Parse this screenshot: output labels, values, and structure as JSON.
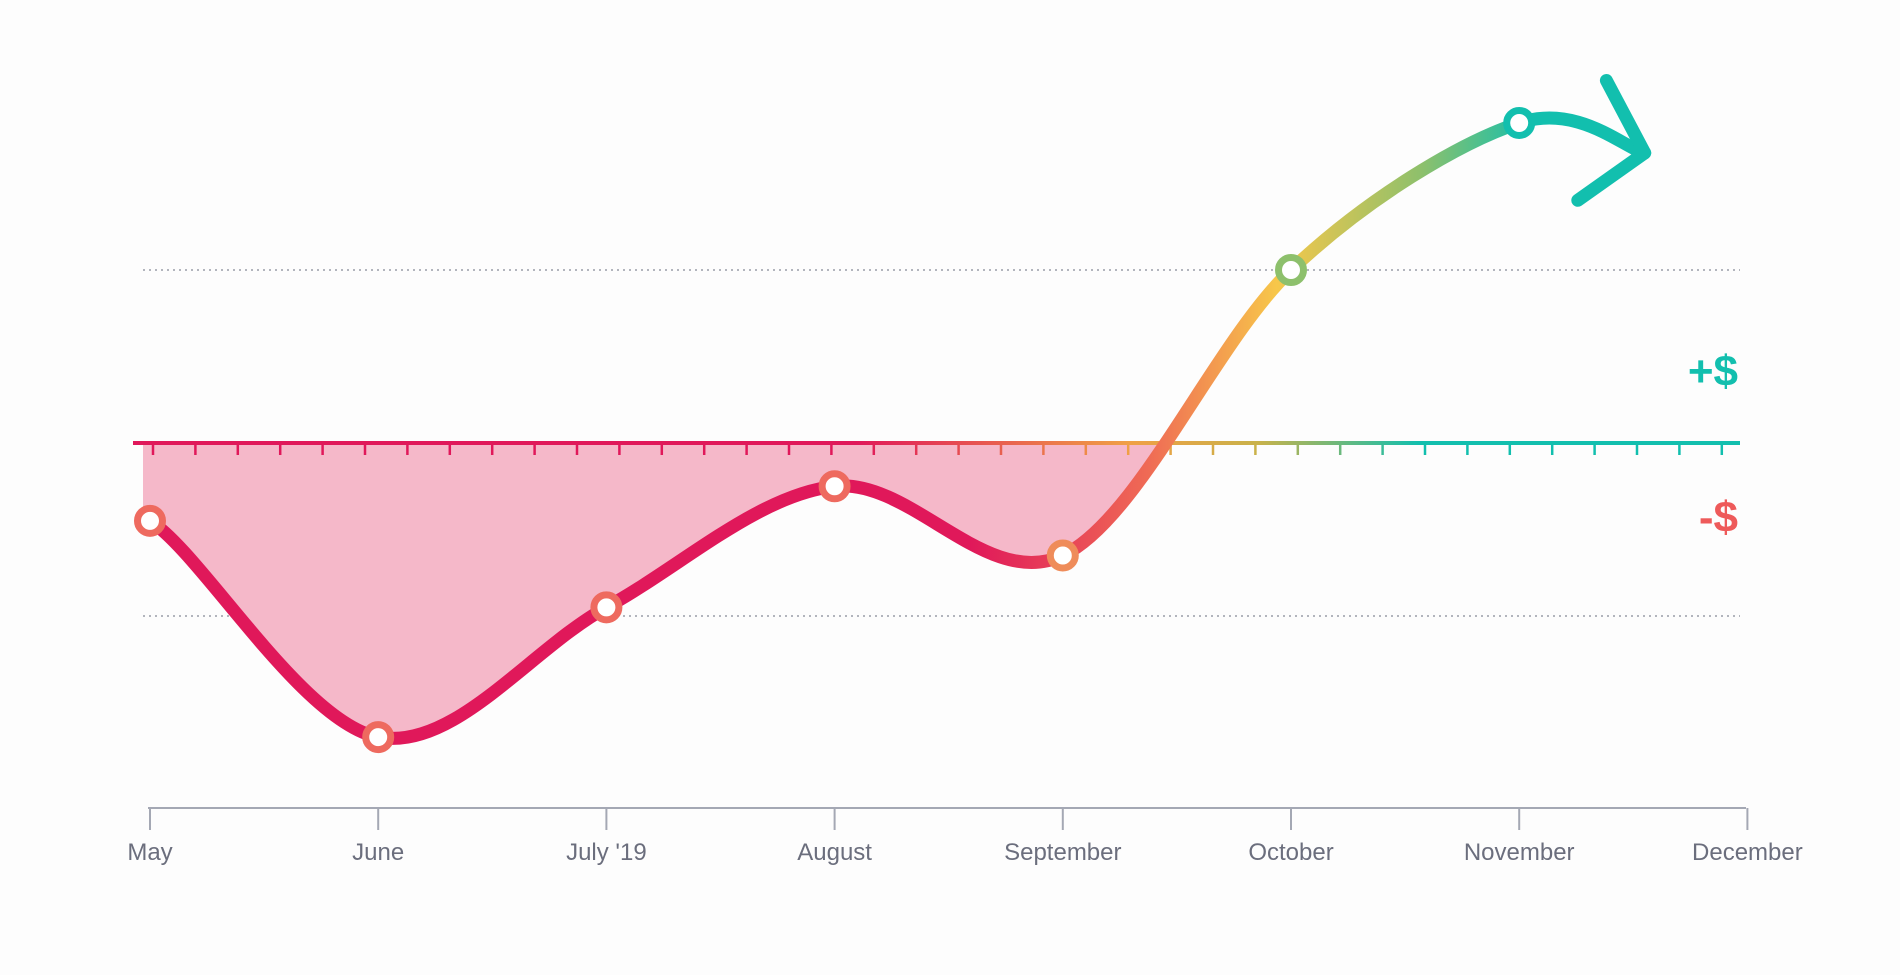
{
  "chart_data": {
    "type": "line",
    "title": "",
    "xlabel": "",
    "ylabel": "",
    "x": [
      "May",
      "June",
      "July '19",
      "August",
      "September",
      "October",
      "November",
      "December"
    ],
    "series": [
      {
        "values": [
          -0.45,
          -1.7,
          -0.95,
          -0.25,
          -0.65,
          1.0,
          1.85,
          null
        ]
      }
    ],
    "ylim": [
      -2.25,
      2.0
    ],
    "zero_line": 0,
    "reference_lines": [
      1.0,
      -1.0
    ],
    "positive_label": "+$",
    "negative_label": "-$",
    "negative_area_shaded": true,
    "trend_arrow": "right",
    "grid": false
  },
  "colors": {
    "negative": "#e0185a",
    "negative_fill": "#f5b8c9",
    "marker_negative": "#ee6a5f",
    "transition_yellow": "#f7c74a",
    "transition_green": "#8dc06c",
    "positive": "#12bfae",
    "positive_label": "#12bfae",
    "negative_label": "#ee5a5a",
    "axis": "#a4a8b4",
    "month_text": "#6b6e7d",
    "dotted_line": "#9a9da8"
  }
}
